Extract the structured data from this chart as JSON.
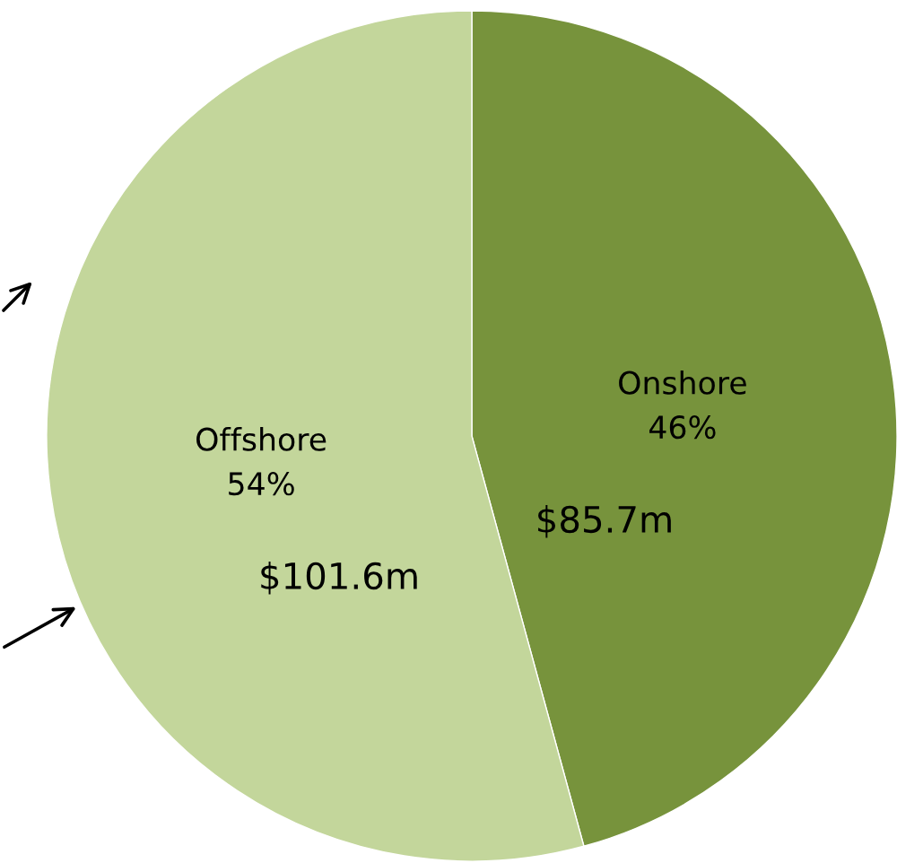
{
  "chart_data": {
    "type": "pie",
    "categories": [
      "Onshore",
      "Offshore"
    ],
    "values": [
      85.7,
      101.6
    ],
    "colors": [
      "#77933c",
      "#c3d69b"
    ],
    "value_labels": [
      "$85.7m",
      "$101.6m"
    ],
    "annotations": [
      {
        "text": "46%",
        "x": "Onshore"
      },
      {
        "text": "54%",
        "x": "Offshore"
      }
    ]
  }
}
